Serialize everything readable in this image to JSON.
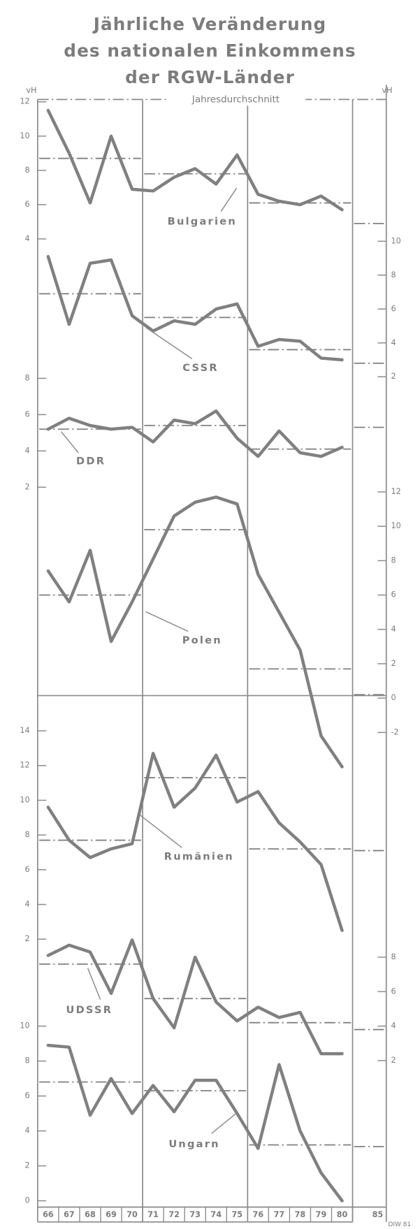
{
  "chart_data": {
    "type": "line",
    "title": [
      "Jährliche Veränderung",
      "des nationalen Einkommens",
      "der RGW-Länder"
    ],
    "y_unit": "vH",
    "y2_unit": "vH",
    "average_label": "Jahresdurchschnitt",
    "categories": [
      "66",
      "67",
      "68",
      "69",
      "70",
      "71",
      "72",
      "73",
      "74",
      "75",
      "76",
      "77",
      "78",
      "79",
      "80"
    ],
    "plan_category": "85",
    "source": "DIW 81",
    "series": [
      {
        "name": "Bulgarien",
        "color": "#808080",
        "axis": "y",
        "ylim": [
          4,
          12
        ],
        "yticks": [
          4,
          6,
          8,
          10,
          12
        ],
        "values": [
          11.5,
          9,
          6.1,
          10,
          6.9,
          6.8,
          7.6,
          8.1,
          7.2,
          8.9,
          6.6,
          6.2,
          6.0,
          6.5,
          5.7
        ],
        "averages": [
          8.7,
          7.8,
          6.1,
          4.9
        ]
      },
      {
        "name": "CSSR",
        "color": "#808080",
        "axis": "y2",
        "ylim": [
          2,
          10
        ],
        "yticks": [
          2,
          4,
          6,
          8,
          10
        ],
        "values": [
          9.1,
          5.1,
          8.7,
          8.9,
          5.6,
          4.7,
          5.3,
          5.1,
          6.0,
          6.3,
          3.8,
          4.2,
          4.1,
          3.1,
          3.0
        ],
        "averages": [
          6.9,
          5.5,
          3.6,
          2.8
        ]
      },
      {
        "name": "DDR",
        "color": "#808080",
        "axis": "y",
        "ylim": [
          2,
          8
        ],
        "yticks": [
          2,
          4,
          6,
          8
        ],
        "values": [
          5.2,
          5.8,
          5.4,
          5.2,
          5.3,
          4.5,
          5.7,
          5.5,
          6.2,
          4.7,
          3.7,
          5.1,
          3.9,
          3.7,
          4.2
        ],
        "averages": [
          5.2,
          5.4,
          4.1,
          5.3
        ]
      },
      {
        "name": "Polen",
        "color": "#808080",
        "axis": "y2",
        "ylim": [
          -4,
          12
        ],
        "yticks": [
          -2,
          0,
          2,
          4,
          6,
          8,
          10,
          12
        ],
        "values": [
          7.4,
          5.6,
          8.6,
          3.3,
          5.6,
          8.1,
          10.6,
          11.4,
          11.7,
          11.3,
          7.2,
          5.0,
          2.8,
          -2.2,
          -4.0
        ],
        "averages": [
          6.0,
          9.8,
          1.7,
          0.2
        ]
      },
      {
        "name": "Rumänien",
        "color": "#808080",
        "axis": "y",
        "ylim": [
          2,
          14
        ],
        "yticks": [
          2,
          4,
          6,
          8,
          10,
          12,
          14
        ],
        "values": [
          9.6,
          7.7,
          6.7,
          7.2,
          7.5,
          12.7,
          9.6,
          10.7,
          12.6,
          9.9,
          10.5,
          8.7,
          7.6,
          6.3,
          2.5
        ],
        "averages": [
          7.7,
          11.3,
          7.2,
          7.1
        ]
      },
      {
        "name": "UDSSR",
        "color": "#808080",
        "axis": "y2",
        "ylim": [
          2,
          9
        ],
        "yticks": [
          2,
          4,
          6,
          8
        ],
        "values": [
          8.1,
          8.7,
          8.3,
          5.9,
          9.0,
          5.6,
          3.9,
          8.0,
          5.4,
          4.3,
          5.1,
          4.5,
          4.8,
          2.4,
          2.4
        ],
        "averages": [
          7.6,
          5.6,
          4.2,
          3.8
        ]
      },
      {
        "name": "Ungarn",
        "color": "#808080",
        "axis": "y",
        "ylim": [
          0,
          10
        ],
        "yticks": [
          0,
          2,
          4,
          6,
          8,
          10
        ],
        "values": [
          8.9,
          8.8,
          4.9,
          7.0,
          5.0,
          6.6,
          5.1,
          6.9,
          6.9,
          5.0,
          3.0,
          7.8,
          4.0,
          1.6,
          0
        ],
        "averages": [
          6.8,
          6.3,
          3.2,
          3.1
        ]
      }
    ]
  }
}
